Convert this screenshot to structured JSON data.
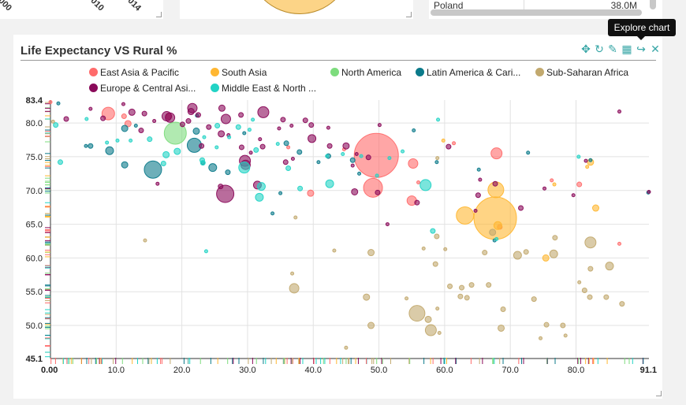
{
  "top_left": {
    "tick_labels": [
      "000",
      "010",
      "014"
    ]
  },
  "top_right": {
    "country": "Poland",
    "value": "38.0M"
  },
  "chart": {
    "title": "Life Expectancy VS Rural %",
    "tooltip": "Explore chart",
    "toolbar": {
      "move_icon": "✥",
      "refresh_icon": "↻",
      "edit_icon": "✎",
      "table_icon": "▦",
      "share_icon": "↪",
      "close_icon": "✕"
    },
    "legend": [
      {
        "label": "East Asia & Pacific",
        "color": "#ff6b6b"
      },
      {
        "label": "South Asia",
        "color": "#ffb732"
      },
      {
        "label": "North America",
        "color": "#7ddc7d"
      },
      {
        "label": "Latin America & Cari...",
        "color": "#0b7a8a"
      },
      {
        "label": "Sub-Saharan Africa",
        "color": "#c2a96e"
      },
      {
        "label": "Europe & Central Asi...",
        "color": "#8a0a5a"
      },
      {
        "label": "Middle East & North ...",
        "color": "#22d3c5"
      }
    ]
  },
  "chart_data": {
    "type": "scatter",
    "title": "Life Expectancy VS Rural %",
    "xlim": [
      0,
      91.1
    ],
    "ylim": [
      45.1,
      83.4
    ],
    "x_ticks": [
      "0.00",
      "10.0",
      "20.0",
      "30.0",
      "40.0",
      "50.0",
      "60.0",
      "70.0",
      "80.0",
      "91.1"
    ],
    "y_ticks": [
      "45.1",
      "50.0",
      "55.0",
      "60.0",
      "65.0",
      "70.0",
      "75.0",
      "80.0",
      "83.4"
    ],
    "grid": true,
    "legend_position": "top",
    "series": [
      {
        "name": "East Asia & Pacific",
        "color": "#ff6b6b",
        "points": [
          [
            8.8,
            81.4,
            8
          ],
          [
            11.2,
            81.0,
            3
          ],
          [
            11.8,
            79.9,
            4
          ],
          [
            18.0,
            81.0,
            4
          ],
          [
            36.2,
            76.4,
            2
          ],
          [
            39.6,
            69.6,
            4
          ],
          [
            44.7,
            76.1,
            2
          ],
          [
            49.1,
            70.4,
            12
          ],
          [
            49.6,
            75.2,
            28
          ],
          [
            55.0,
            68.5,
            6
          ],
          [
            55.2,
            74.0,
            6
          ],
          [
            56.0,
            71.2,
            2
          ],
          [
            61.4,
            77.0,
            2
          ],
          [
            67.9,
            75.5,
            7
          ],
          [
            68.4,
            64.6,
            3
          ],
          [
            76.3,
            71.5,
            2
          ],
          [
            80.5,
            70.9,
            3
          ],
          [
            86.6,
            62.1,
            2
          ],
          [
            0.0,
            83.1,
            2
          ]
        ]
      },
      {
        "name": "South Asia",
        "color": "#ffb732",
        "points": [
          [
            59.8,
            77.4,
            2
          ],
          [
            63.1,
            66.3,
            11
          ],
          [
            67.8,
            70.1,
            10
          ],
          [
            67.7,
            65.9,
            27
          ],
          [
            68.1,
            64.8,
            5
          ],
          [
            75.4,
            60.0,
            4
          ],
          [
            76.7,
            70.9,
            2
          ],
          [
            82.2,
            74.2,
            4
          ],
          [
            83.0,
            67.4,
            4
          ],
          [
            81.7,
            73.5,
            2
          ]
        ]
      },
      {
        "name": "North America",
        "color": "#7ddc7d",
        "points": [
          [
            19.0,
            78.5,
            14
          ]
        ]
      },
      {
        "name": "Latin America & Cari...",
        "color": "#0b7a8a",
        "points": [
          [
            1.2,
            82.9,
            2
          ],
          [
            5.4,
            76.6,
            2
          ],
          [
            6.1,
            76.6,
            3
          ],
          [
            9.0,
            75.9,
            5
          ],
          [
            11.3,
            73.8,
            4
          ],
          [
            11.3,
            79.2,
            4
          ],
          [
            13.0,
            79.6,
            2
          ],
          [
            15.6,
            73.1,
            11
          ],
          [
            21.9,
            76.7,
            9
          ],
          [
            22.3,
            81.1,
            2
          ],
          [
            22.2,
            78.8,
            4
          ],
          [
            23.2,
            74.1,
            2
          ],
          [
            24.7,
            73.4,
            5
          ],
          [
            27.0,
            72.7,
            3
          ],
          [
            29.5,
            78.5,
            2
          ],
          [
            33.8,
            66.6,
            2
          ],
          [
            35.0,
            69.6,
            2
          ],
          [
            35.9,
            77.0,
            3
          ],
          [
            37.9,
            75.7,
            3
          ],
          [
            40.8,
            74.2,
            2
          ],
          [
            42.3,
            75.1,
            3
          ],
          [
            46.0,
            74.5,
            3
          ],
          [
            47.0,
            72.5,
            2
          ],
          [
            55.3,
            78.9,
            2
          ],
          [
            58.8,
            74.2,
            2
          ],
          [
            65.2,
            73.1,
            2
          ],
          [
            67.6,
            62.6,
            2
          ],
          [
            72.7,
            75.6,
            2
          ],
          [
            82.2,
            74.5,
            2
          ],
          [
            91.0,
            69.7,
            2
          ]
        ]
      },
      {
        "name": "Sub-Saharan Africa",
        "color": "#c2a96e",
        "points": [
          [
            14.4,
            62.6,
            2
          ],
          [
            37.1,
            55.5,
            6
          ],
          [
            36.8,
            57.7,
            2
          ],
          [
            37.3,
            66.0,
            2
          ],
          [
            43.2,
            61.1,
            2
          ],
          [
            45.0,
            46.7,
            2
          ],
          [
            48.1,
            54.2,
            4
          ],
          [
            48.8,
            60.8,
            4
          ],
          [
            48.8,
            50.0,
            4
          ],
          [
            54.2,
            54.0,
            2
          ],
          [
            55.8,
            51.8,
            10
          ],
          [
            56.8,
            61.4,
            2
          ],
          [
            57.5,
            50.9,
            4
          ],
          [
            57.9,
            49.3,
            7
          ],
          [
            58.6,
            59.1,
            3
          ],
          [
            58.9,
            52.5,
            2
          ],
          [
            58.8,
            63.2,
            3
          ],
          [
            58.9,
            74.8,
            2
          ],
          [
            59.2,
            48.9,
            2
          ],
          [
            60.1,
            61.3,
            2
          ],
          [
            60.8,
            55.8,
            3
          ],
          [
            62.4,
            54.3,
            3
          ],
          [
            62.6,
            55.6,
            3
          ],
          [
            63.4,
            54.1,
            3
          ],
          [
            64.1,
            56.0,
            3
          ],
          [
            66.1,
            60.8,
            3
          ],
          [
            66.7,
            56.0,
            3
          ],
          [
            67.3,
            63.8,
            4
          ],
          [
            68.6,
            49.6,
            4
          ],
          [
            68.9,
            52.4,
            3
          ],
          [
            71.1,
            60.4,
            5
          ],
          [
            72.4,
            60.9,
            3
          ],
          [
            73.6,
            53.9,
            3
          ],
          [
            74.6,
            48.1,
            2
          ],
          [
            75.5,
            50.1,
            3
          ],
          [
            76.6,
            60.6,
            5
          ],
          [
            76.8,
            63.0,
            3
          ],
          [
            78.0,
            50.0,
            3
          ],
          [
            78.4,
            48.5,
            2
          ],
          [
            80.5,
            56.4,
            2
          ],
          [
            81.3,
            55.2,
            3
          ],
          [
            82.2,
            62.3,
            7
          ],
          [
            82.2,
            58.4,
            3
          ],
          [
            82.1,
            54.2,
            3
          ],
          [
            84.6,
            54.2,
            3
          ],
          [
            85.1,
            58.8,
            5
          ],
          [
            87.0,
            53.2,
            3
          ],
          [
            0.4,
            80.2,
            2
          ]
        ]
      },
      {
        "name": "Europe & Central Asi...",
        "color": "#8a0a5a",
        "points": [
          [
            2.4,
            80.6,
            3
          ],
          [
            6.1,
            82.1,
            2
          ],
          [
            8.0,
            80.7,
            3
          ],
          [
            11.1,
            82.8,
            2
          ],
          [
            12.4,
            81.6,
            4
          ],
          [
            13.8,
            78.9,
            3
          ],
          [
            14.3,
            81.4,
            3
          ],
          [
            15.8,
            80.3,
            2
          ],
          [
            16.3,
            71.0,
            2
          ],
          [
            17.7,
            81.0,
            6
          ],
          [
            18.2,
            80.8,
            6
          ],
          [
            20.1,
            79.8,
            3
          ],
          [
            21.0,
            80.3,
            3
          ],
          [
            21.4,
            81.7,
            4
          ],
          [
            21.6,
            82.2,
            6
          ],
          [
            22.5,
            81.2,
            3
          ],
          [
            23.0,
            76.6,
            3
          ],
          [
            24.1,
            79.4,
            3
          ],
          [
            26.0,
            78.4,
            4
          ],
          [
            26.1,
            82.2,
            4
          ],
          [
            26.7,
            80.6,
            6
          ],
          [
            27.1,
            78.2,
            2
          ],
          [
            25.9,
            70.6,
            3
          ],
          [
            26.6,
            69.5,
            11
          ],
          [
            29.0,
            81.2,
            3
          ],
          [
            29.1,
            76.4,
            3
          ],
          [
            29.7,
            73.8,
            6
          ],
          [
            29.6,
            74.4,
            7
          ],
          [
            30.5,
            75.6,
            2
          ],
          [
            31.5,
            70.8,
            5
          ],
          [
            31.9,
            77.6,
            2
          ],
          [
            32.4,
            81.6,
            7
          ],
          [
            32.3,
            76.5,
            3
          ],
          [
            34.8,
            79.2,
            2
          ],
          [
            35.4,
            80.5,
            3
          ],
          [
            35.8,
            74.2,
            3
          ],
          [
            36.7,
            79.6,
            2
          ],
          [
            36.9,
            74.7,
            2
          ],
          [
            38.8,
            80.4,
            3
          ],
          [
            39.7,
            79.7,
            3
          ],
          [
            39.8,
            77.7,
            5
          ],
          [
            42.5,
            76.6,
            3
          ],
          [
            42.3,
            79.3,
            2
          ],
          [
            45.0,
            76.6,
            4
          ],
          [
            46.0,
            73.7,
            2
          ],
          [
            46.6,
            75.4,
            2
          ],
          [
            46.3,
            69.8,
            4
          ],
          [
            48.4,
            74.9,
            3
          ],
          [
            49.8,
            69.7,
            3
          ],
          [
            50.1,
            79.7,
            2
          ],
          [
            51.3,
            65.0,
            2
          ],
          [
            55.8,
            68.2,
            3
          ],
          [
            60.6,
            76.5,
            3
          ],
          [
            64.7,
            67.0,
            2
          ],
          [
            65.1,
            69.3,
            3
          ],
          [
            65.4,
            71.6,
            2
          ],
          [
            67.7,
            71.0,
            3
          ],
          [
            71.6,
            67.4,
            3
          ],
          [
            75.2,
            70.3,
            2
          ],
          [
            79.6,
            69.3,
            2
          ],
          [
            81.5,
            74.4,
            2
          ],
          [
            86.6,
            81.7,
            2
          ],
          [
            91.1,
            69.8,
            2
          ]
        ]
      },
      {
        "name": "Middle East & North ...",
        "color": "#22d3c5",
        "points": [
          [
            0.8,
            79.7,
            3
          ],
          [
            1.5,
            74.2,
            3
          ],
          [
            5.5,
            80.6,
            2
          ],
          [
            8.6,
            77.1,
            2
          ],
          [
            10.2,
            77.4,
            2
          ],
          [
            12.2,
            77.4,
            2
          ],
          [
            15.1,
            77.6,
            3
          ],
          [
            17.6,
            75.3,
            4
          ],
          [
            17.2,
            74.0,
            3
          ],
          [
            19.3,
            75.8,
            4
          ],
          [
            23.1,
            74.5,
            3
          ],
          [
            23.2,
            74.1,
            3
          ],
          [
            23.4,
            77.9,
            2
          ],
          [
            23.7,
            61.0,
            2
          ],
          [
            25.4,
            79.6,
            3
          ],
          [
            25.3,
            76.4,
            2
          ],
          [
            27.2,
            77.9,
            2
          ],
          [
            28.6,
            79.4,
            3
          ],
          [
            29.5,
            73.4,
            7
          ],
          [
            30.3,
            79.0,
            2
          ],
          [
            30.8,
            80.5,
            2
          ],
          [
            31.8,
            69.0,
            5
          ],
          [
            31.3,
            76.0,
            3
          ],
          [
            32.1,
            70.6,
            5
          ],
          [
            34.6,
            76.9,
            2
          ],
          [
            36.2,
            73.3,
            3
          ],
          [
            38.0,
            70.3,
            3
          ],
          [
            42.1,
            75.1,
            2
          ],
          [
            42.5,
            71.0,
            5
          ],
          [
            44.5,
            75.4,
            2
          ],
          [
            47.3,
            75.1,
            2
          ],
          [
            49.7,
            72.2,
            2
          ],
          [
            51.6,
            74.8,
            2
          ],
          [
            53.6,
            75.8,
            2
          ],
          [
            57.1,
            70.8,
            7
          ],
          [
            58.2,
            64.0,
            3
          ],
          [
            59.0,
            80.5,
            2
          ],
          [
            67.9,
            62.8,
            2
          ],
          [
            80.4,
            75.0,
            2
          ]
        ]
      }
    ],
    "rugs": {
      "x_count": 130,
      "y_count": 110
    }
  }
}
